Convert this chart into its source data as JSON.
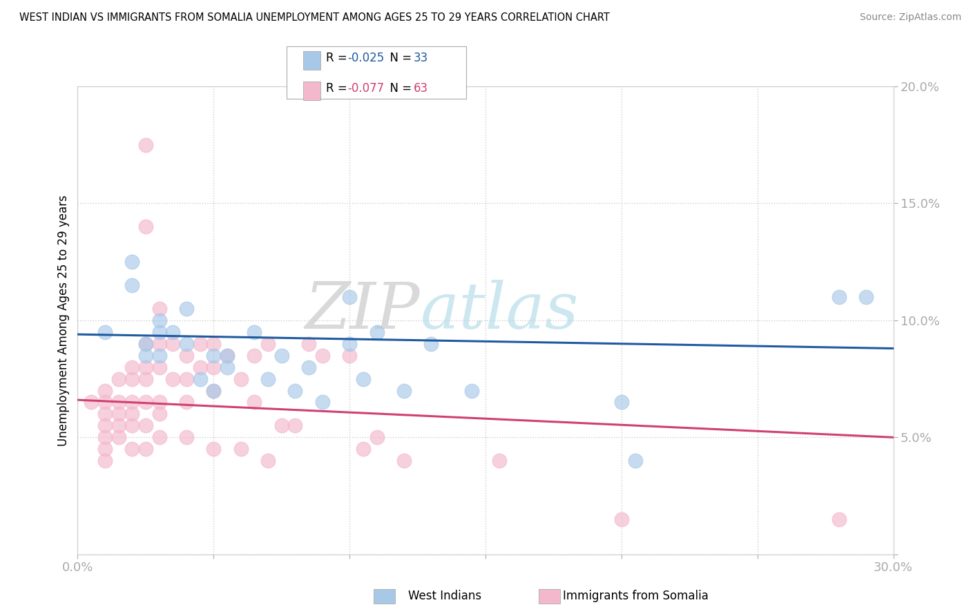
{
  "title": "WEST INDIAN VS IMMIGRANTS FROM SOMALIA UNEMPLOYMENT AMONG AGES 25 TO 29 YEARS CORRELATION CHART",
  "source": "Source: ZipAtlas.com",
  "ylabel": "Unemployment Among Ages 25 to 29 years",
  "xlim": [
    0.0,
    0.3
  ],
  "ylim": [
    0.0,
    0.2
  ],
  "xticks": [
    0.0,
    0.05,
    0.1,
    0.15,
    0.2,
    0.25,
    0.3
  ],
  "yticks": [
    0.0,
    0.05,
    0.1,
    0.15,
    0.2
  ],
  "west_indians_R": -0.025,
  "west_indians_N": 33,
  "somalia_R": -0.077,
  "somalia_N": 63,
  "watermark_zip": "ZIP",
  "watermark_atlas": "atlas",
  "blue_color": "#a8c8e8",
  "pink_color": "#f4b8cc",
  "blue_line_color": "#1f5aa0",
  "pink_line_color": "#d04070",
  "tick_color": "#4472c4",
  "background_color": "#ffffff",
  "legend_label1": "R = ",
  "legend_R1": "-0.025",
  "legend_N1_label": "  N = ",
  "legend_N1": "33",
  "legend_label2": "R = ",
  "legend_R2": "-0.077",
  "legend_N2_label": "  N = ",
  "legend_N2": "63",
  "west_indians_x": [
    0.01,
    0.02,
    0.02,
    0.025,
    0.025,
    0.03,
    0.03,
    0.03,
    0.035,
    0.04,
    0.04,
    0.045,
    0.05,
    0.05,
    0.055,
    0.055,
    0.065,
    0.07,
    0.075,
    0.08,
    0.085,
    0.09,
    0.1,
    0.1,
    0.105,
    0.11,
    0.12,
    0.13,
    0.145,
    0.2,
    0.205,
    0.28,
    0.29
  ],
  "west_indians_y": [
    0.095,
    0.115,
    0.125,
    0.09,
    0.085,
    0.1,
    0.095,
    0.085,
    0.095,
    0.105,
    0.09,
    0.075,
    0.085,
    0.07,
    0.085,
    0.08,
    0.095,
    0.075,
    0.085,
    0.07,
    0.08,
    0.065,
    0.11,
    0.09,
    0.075,
    0.095,
    0.07,
    0.09,
    0.07,
    0.065,
    0.04,
    0.11,
    0.11
  ],
  "somalia_x": [
    0.005,
    0.01,
    0.01,
    0.01,
    0.01,
    0.01,
    0.01,
    0.01,
    0.015,
    0.015,
    0.015,
    0.015,
    0.015,
    0.02,
    0.02,
    0.02,
    0.02,
    0.02,
    0.02,
    0.025,
    0.025,
    0.025,
    0.025,
    0.025,
    0.025,
    0.025,
    0.025,
    0.03,
    0.03,
    0.03,
    0.03,
    0.03,
    0.03,
    0.035,
    0.035,
    0.04,
    0.04,
    0.04,
    0.04,
    0.045,
    0.045,
    0.05,
    0.05,
    0.05,
    0.05,
    0.055,
    0.06,
    0.06,
    0.065,
    0.065,
    0.07,
    0.07,
    0.075,
    0.08,
    0.085,
    0.09,
    0.1,
    0.105,
    0.11,
    0.12,
    0.155,
    0.2,
    0.28
  ],
  "somalia_y": [
    0.065,
    0.07,
    0.065,
    0.06,
    0.055,
    0.05,
    0.045,
    0.04,
    0.075,
    0.065,
    0.06,
    0.055,
    0.05,
    0.08,
    0.075,
    0.065,
    0.06,
    0.055,
    0.045,
    0.175,
    0.14,
    0.09,
    0.08,
    0.075,
    0.065,
    0.055,
    0.045,
    0.105,
    0.09,
    0.08,
    0.065,
    0.06,
    0.05,
    0.09,
    0.075,
    0.085,
    0.075,
    0.065,
    0.05,
    0.09,
    0.08,
    0.09,
    0.08,
    0.07,
    0.045,
    0.085,
    0.075,
    0.045,
    0.085,
    0.065,
    0.09,
    0.04,
    0.055,
    0.055,
    0.09,
    0.085,
    0.085,
    0.045,
    0.05,
    0.04,
    0.04,
    0.015,
    0.015
  ],
  "blue_line_x0": 0.0,
  "blue_line_y0": 0.094,
  "blue_line_x1": 0.3,
  "blue_line_y1": 0.088,
  "pink_line_x0": 0.0,
  "pink_line_y0": 0.066,
  "pink_line_x1": 0.3,
  "pink_line_y1": 0.05
}
